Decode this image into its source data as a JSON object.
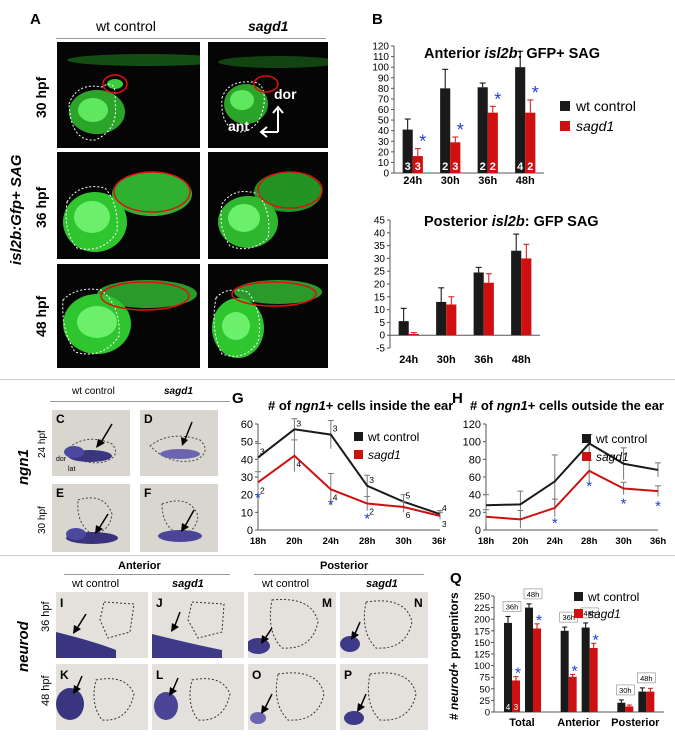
{
  "panelA": {
    "letter": "A",
    "col_headers": [
      "wt control",
      "sagd1"
    ],
    "row_labels": [
      "30 hpf",
      "36 hpf",
      "48 hpf"
    ],
    "side_label": "isl2b:Gfp+ SAG",
    "axis_dor": "dor",
    "axis_ant": "ant"
  },
  "panelB": {
    "letter": "B",
    "top_title_pre": "Anterior ",
    "top_title_em": "isl2b",
    "top_title_post": ": GFP+ SAG",
    "bottom_title_pre": "Posterior ",
    "bottom_title_em": "isl2b",
    "bottom_title_post": ": GFP SAG",
    "legend": [
      "wt control",
      "sagd1"
    ]
  },
  "panelCF": {
    "letters": [
      "C",
      "D",
      "E",
      "F"
    ],
    "col_headers": [
      "wt control",
      "sagd1"
    ],
    "row_labels": [
      "24 hpf",
      "30 hpf"
    ],
    "side_label": "ngn1",
    "axis_dor": "dor",
    "axis_lat": "lat"
  },
  "panelG": {
    "letter": "G",
    "title_pre": "# of ",
    "title_em": "ngn1",
    "title_post": "+ cells inside the ear"
  },
  "panelH": {
    "letter": "H",
    "title_pre": "# of ",
    "title_em": "ngn1",
    "title_post": "+ cells outside the ear"
  },
  "panelIP": {
    "letters": [
      "I",
      "J",
      "K",
      "L",
      "M",
      "N",
      "O",
      "P"
    ],
    "group_headers": [
      "Anterior",
      "Posterior"
    ],
    "col_headers": [
      "wt control",
      "sagd1",
      "wt control",
      "sagd1"
    ],
    "row_labels": [
      "36 hpf",
      "48 hpf"
    ],
    "side_label": "neurod"
  },
  "panelQ": {
    "letter": "Q",
    "ylabel_pre": "# ",
    "ylabel_em": "neurod",
    "ylabel_post": "+ progenitors"
  },
  "colors": {
    "wt": "#1a1a1a",
    "mutant": "#d01010",
    "star": "#1f3fd0",
    "gfp": "#39d23a"
  },
  "chart_data": [
    {
      "id": "B-anterior",
      "type": "bar",
      "title": "Anterior isl2b: GFP+ SAG",
      "categories": [
        "24h",
        "30h",
        "36h",
        "48h"
      ],
      "ylim": [
        0,
        120
      ],
      "yticks": [
        0,
        10,
        20,
        30,
        40,
        50,
        60,
        70,
        80,
        90,
        100,
        110,
        120
      ],
      "legend_position": "right",
      "series": [
        {
          "name": "wt control",
          "values": [
            41,
            80,
            81,
            100
          ],
          "errors": [
            10,
            18,
            4,
            15
          ],
          "n": [
            "3",
            "2",
            "2",
            "4"
          ]
        },
        {
          "name": "sagd1",
          "values": [
            16,
            29,
            57,
            57
          ],
          "errors": [
            7,
            5,
            6,
            12
          ],
          "n": [
            "3",
            "3",
            "2",
            "2"
          ]
        }
      ],
      "significant": [
        "24h",
        "30h",
        "36h",
        "48h"
      ]
    },
    {
      "id": "B-posterior",
      "type": "bar",
      "title": "Posterior isl2b: GFP SAG",
      "categories": [
        "24h",
        "30h",
        "36h",
        "48h"
      ],
      "ylim": [
        -5,
        45
      ],
      "yticks": [
        -5,
        0,
        5,
        10,
        15,
        20,
        25,
        30,
        35,
        40,
        45
      ],
      "series": [
        {
          "name": "wt control",
          "values": [
            5.5,
            13,
            24.5,
            33
          ],
          "errors": [
            5,
            5.5,
            2,
            6.5
          ]
        },
        {
          "name": "sagd1",
          "values": [
            0.5,
            12,
            20.5,
            30
          ],
          "errors": [
            0.5,
            3,
            3.5,
            5.5
          ]
        }
      ]
    },
    {
      "id": "G",
      "type": "line",
      "title": "# of ngn1+ cells inside the ear",
      "categories": [
        "18h",
        "20h",
        "24h",
        "28h",
        "30h",
        "36h"
      ],
      "ylim": [
        0,
        60
      ],
      "yticks": [
        0,
        10,
        20,
        30,
        40,
        50,
        60
      ],
      "legend_position": "right",
      "series": [
        {
          "name": "wt control",
          "values": [
            41,
            57,
            54,
            25,
            16,
            9
          ],
          "errors": [
            8,
            6,
            8,
            6,
            4,
            2
          ],
          "n": [
            "3",
            "3",
            "3",
            "3",
            "5",
            "4"
          ]
        },
        {
          "name": "sagd1",
          "values": [
            27,
            42,
            23,
            15,
            13,
            8
          ],
          "errors": [
            6,
            9,
            9,
            4,
            3,
            2
          ],
          "n": [
            "2",
            "4",
            "4",
            "2",
            "6",
            "3"
          ]
        }
      ],
      "significant": [
        "18h",
        "24h",
        "28h"
      ]
    },
    {
      "id": "H",
      "type": "line",
      "title": "# of ngn1+ cells outside the ear",
      "categories": [
        "18h",
        "20h",
        "24h",
        "28h",
        "30h",
        "36h"
      ],
      "ylim": [
        0,
        120
      ],
      "yticks": [
        0,
        20,
        40,
        60,
        80,
        100,
        120
      ],
      "legend_position": "right",
      "series": [
        {
          "name": "wt control",
          "values": [
            28,
            29,
            55,
            98,
            75,
            68
          ],
          "errors": [
            12,
            15,
            30,
            10,
            18,
            8
          ],
          "n": []
        },
        {
          "name": "sagd1",
          "values": [
            15,
            12,
            25,
            67,
            47,
            44
          ],
          "errors": [
            8,
            10,
            10,
            12,
            7,
            6
          ],
          "n": []
        }
      ],
      "significant": [
        "24h",
        "28h",
        "30h",
        "36h"
      ]
    },
    {
      "id": "Q",
      "type": "bar",
      "ylabel": "# neurod+ progenitors",
      "groups": [
        "Total",
        "Anterior",
        "Posterior"
      ],
      "subcategories": [
        [
          "36h",
          "48h"
        ],
        [
          "36h",
          "48h"
        ],
        [
          "30h",
          "48h"
        ]
      ],
      "ylim": [
        0,
        250
      ],
      "yticks": [
        0,
        25,
        50,
        75,
        100,
        125,
        150,
        175,
        200,
        225,
        250
      ],
      "legend_position": "top-right",
      "series": [
        {
          "name": "wt control",
          "values": [
            192,
            225,
            175,
            182,
            20,
            44
          ],
          "errors": [
            14,
            8,
            8,
            10,
            6,
            8
          ]
        },
        {
          "name": "sagd1",
          "values": [
            68,
            180,
            76,
            138,
            12,
            44
          ],
          "errors": [
            8,
            10,
            5,
            10,
            3,
            7
          ]
        }
      ],
      "n": [
        "4",
        "3"
      ],
      "significant_mutant": [
        0,
        1,
        2,
        3
      ]
    }
  ]
}
